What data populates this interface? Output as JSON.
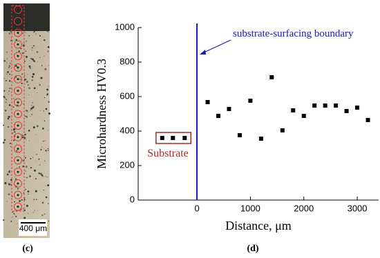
{
  "micrograph": {
    "scale_label": "400 μm",
    "panel_label": "(c)"
  },
  "chart_data": {
    "type": "scatter",
    "panel_label": "(d)",
    "x_label": "Distance, μm",
    "y_label": "Microhardness HV0.3",
    "x": [
      -650,
      -450,
      -230,
      200,
      400,
      600,
      800,
      1000,
      1200,
      1400,
      1600,
      1800,
      2000,
      2200,
      2400,
      2600,
      2800,
      3000,
      3200
    ],
    "values": [
      360,
      360,
      360,
      568,
      488,
      528,
      376,
      576,
      356,
      712,
      404,
      520,
      488,
      548,
      548,
      548,
      516,
      536,
      464
    ],
    "color": "#000000",
    "xlim": [
      -1100,
      3400
    ],
    "ylim": [
      0,
      1000
    ],
    "xticks": [
      0,
      1000,
      2000,
      3000
    ],
    "yticks": [
      0,
      200,
      400,
      600,
      800,
      1000
    ],
    "vline": {
      "x": 0,
      "color": "#1a1aa8"
    },
    "annotations": [
      {
        "text": "substrate-surfacing boundary",
        "color": "#1a1aa8"
      },
      {
        "text": "Substrate",
        "color": "#a52a2a"
      }
    ]
  }
}
